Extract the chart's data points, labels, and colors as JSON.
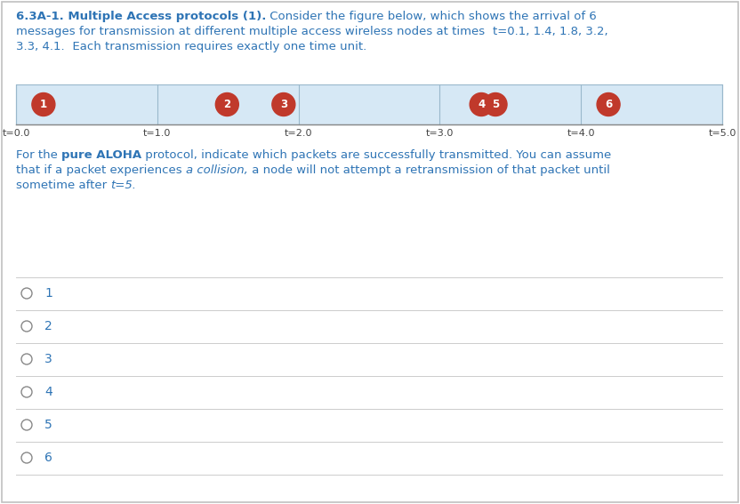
{
  "title_line1_bold": "6.3A-1. Multiple Access protocols (1).",
  "title_line1_rest": " Consider the figure below, which shows the arrival of 6",
  "title_line2_pre": "messages for transmission at different multiple access wireless nodes at times  ",
  "title_line2_mono": "t=0.1, 1.4, 1.8, 3.2,",
  "title_line3_pre": "3.3, 4.1.",
  "title_line3_rest": "  Each transmission requires exactly one time unit.",
  "timeline_ticks": [
    0.0,
    1.0,
    2.0,
    3.0,
    4.0,
    5.0
  ],
  "timeline_labels": [
    "t=0.0",
    "t=1.0",
    "t=2.0",
    "t=3.0",
    "t=4.0",
    "t=5.0"
  ],
  "packets": [
    {
      "label": "1",
      "t_arrive": 0.1
    },
    {
      "label": "2",
      "t_arrive": 1.4
    },
    {
      "label": "3",
      "t_arrive": 1.8
    },
    {
      "label": "4",
      "t_arrive": 3.2
    },
    {
      "label": "5",
      "t_arrive": 3.3
    },
    {
      "label": "6",
      "t_arrive": 4.1
    }
  ],
  "bar_bg_color": "#d6e8f5",
  "bar_border_color": "#9ab8cc",
  "packet_circle_color": "#c0392b",
  "packet_text_color": "#ffffff",
  "timeline_range": [
    0.0,
    5.0
  ],
  "q_pre1": "For the ",
  "q_bold1": "pure ALOHA",
  "q_rest1": " protocol, indicate which packets are successfully transmitted. You can assume",
  "q_pre2": "that if a packet experiences ",
  "q_italic2": "a collision,",
  "q_rest2": " a node will not attempt a retransmission of that packet until",
  "q_pre3": "sometime after ",
  "q_italic3": "t=5.",
  "options": [
    "1",
    "2",
    "3",
    "4",
    "5",
    "6"
  ],
  "bg_color": "#ffffff",
  "text_color": "#2e74b5",
  "option_text_color": "#2e74b5",
  "divider_color": "#cccccc",
  "border_color": "#c0c0c0"
}
